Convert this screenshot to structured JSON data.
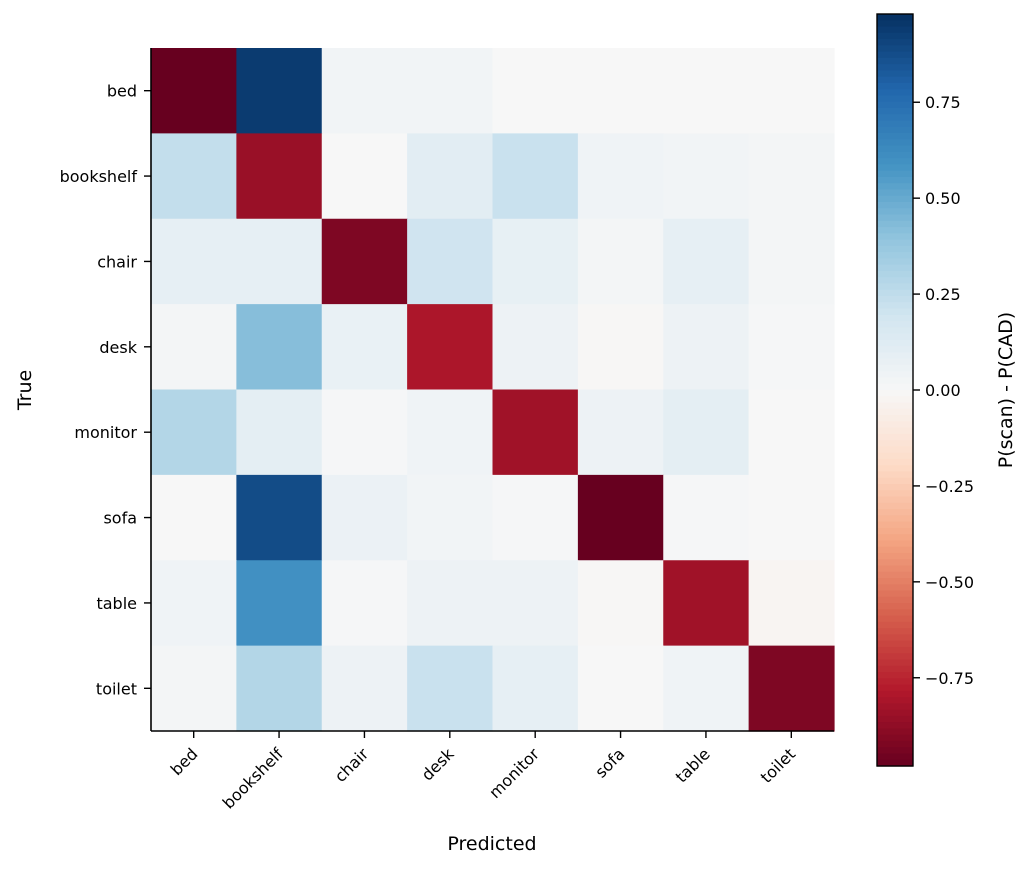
{
  "chart_data": {
    "type": "heatmap",
    "title": "",
    "xlabel": "Predicted",
    "ylabel": "True",
    "x_categories": [
      "bed",
      "bookshelf",
      "chair",
      "desk",
      "monitor",
      "sofa",
      "table",
      "toilet"
    ],
    "y_categories": [
      "bed",
      "bookshelf",
      "chair",
      "desk",
      "monitor",
      "sofa",
      "table",
      "toilet"
    ],
    "values": [
      [
        -0.98,
        0.94,
        0.03,
        0.03,
        0.0,
        0.0,
        0.0,
        0.0
      ],
      [
        0.24,
        -0.85,
        0.0,
        0.11,
        0.22,
        0.04,
        0.03,
        0.02
      ],
      [
        0.09,
        0.09,
        -0.92,
        0.2,
        0.08,
        0.02,
        0.09,
        0.02
      ],
      [
        0.02,
        0.42,
        0.07,
        -0.8,
        0.05,
        -0.01,
        0.05,
        0.01
      ],
      [
        0.29,
        0.1,
        0.01,
        0.04,
        -0.83,
        0.05,
        0.1,
        0.0
      ],
      [
        0.0,
        0.88,
        0.06,
        0.03,
        0.01,
        -0.98,
        0.01,
        0.0
      ],
      [
        0.04,
        0.6,
        0.01,
        0.05,
        0.05,
        -0.01,
        -0.83,
        -0.02
      ],
      [
        0.02,
        0.29,
        0.05,
        0.22,
        0.09,
        0.0,
        0.04,
        -0.92
      ]
    ],
    "colormap": "RdBu",
    "vmin": -0.98,
    "vmax": 0.98,
    "colorbar": {
      "label": "P(scan) - P(CAD)",
      "ticks": [
        0.75,
        0.5,
        0.25,
        0.0,
        -0.25,
        -0.5,
        -0.75
      ],
      "tick_labels": [
        "0.75",
        "0.50",
        "0.25",
        "0.00",
        "−0.25",
        "−0.50",
        "−0.75"
      ]
    },
    "grid": false,
    "legend": "colorbar-right"
  }
}
